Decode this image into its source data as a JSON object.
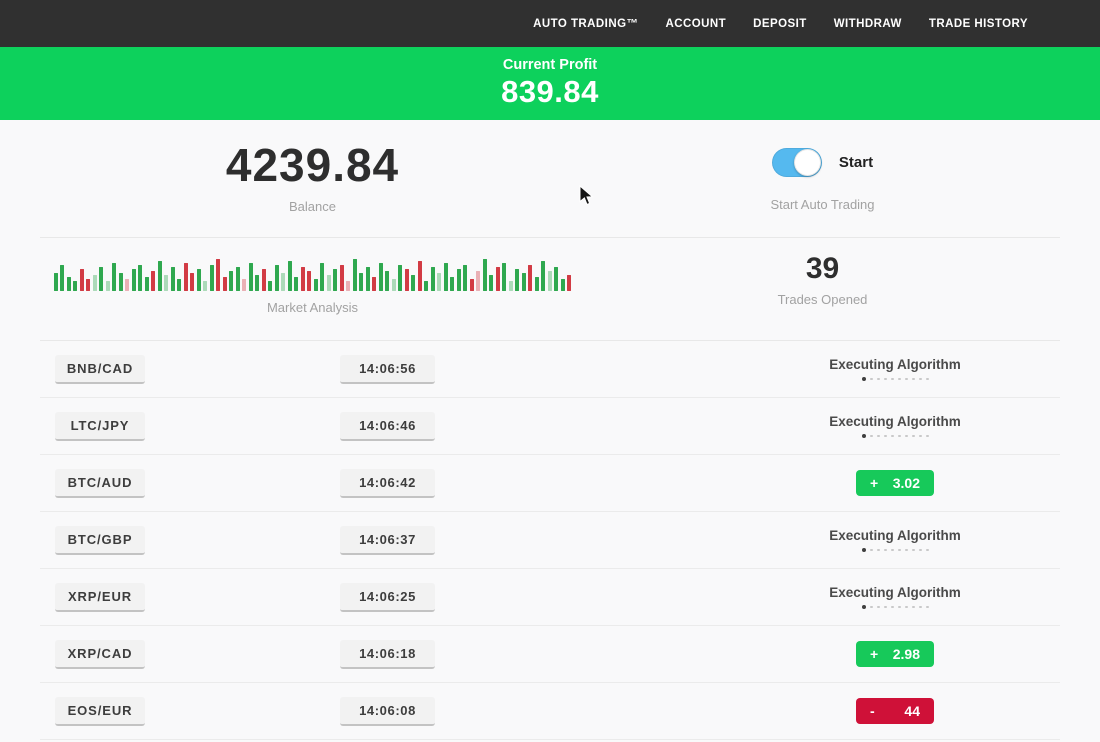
{
  "nav": {
    "items": [
      {
        "id": "auto-trading",
        "label": "AUTO TRADING™"
      },
      {
        "id": "account",
        "label": "ACCOUNT"
      },
      {
        "id": "deposit",
        "label": "DEPOSIT"
      },
      {
        "id": "withdraw",
        "label": "WITHDRAW"
      },
      {
        "id": "trade-history",
        "label": "TRADE HISTORY"
      }
    ]
  },
  "profit_banner": {
    "label": "Current Profit",
    "value": "839.84"
  },
  "balance": {
    "value": "4239.84",
    "label": "Balance"
  },
  "auto_trading_toggle": {
    "state": "on",
    "label": "Start",
    "caption": "Start Auto Trading"
  },
  "market_analysis": {
    "label": "Market Analysis",
    "bars": [
      [
        18,
        "g"
      ],
      [
        26,
        "g"
      ],
      [
        14,
        "g"
      ],
      [
        10,
        "g"
      ],
      [
        22,
        "r"
      ],
      [
        12,
        "r"
      ],
      [
        16,
        "lg"
      ],
      [
        24,
        "g"
      ],
      [
        10,
        "lg"
      ],
      [
        28,
        "g"
      ],
      [
        18,
        "g"
      ],
      [
        12,
        "lr"
      ],
      [
        22,
        "g"
      ],
      [
        26,
        "g"
      ],
      [
        14,
        "g"
      ],
      [
        20,
        "r"
      ],
      [
        30,
        "g"
      ],
      [
        16,
        "lg"
      ],
      [
        24,
        "g"
      ],
      [
        12,
        "g"
      ],
      [
        28,
        "r"
      ],
      [
        18,
        "r"
      ],
      [
        22,
        "g"
      ],
      [
        10,
        "lg"
      ],
      [
        26,
        "g"
      ],
      [
        32,
        "r"
      ],
      [
        14,
        "r"
      ],
      [
        20,
        "g"
      ],
      [
        24,
        "g"
      ],
      [
        12,
        "lr"
      ],
      [
        28,
        "g"
      ],
      [
        16,
        "g"
      ],
      [
        22,
        "r"
      ],
      [
        10,
        "g"
      ],
      [
        26,
        "g"
      ],
      [
        18,
        "lg"
      ],
      [
        30,
        "g"
      ],
      [
        14,
        "g"
      ],
      [
        24,
        "r"
      ],
      [
        20,
        "r"
      ],
      [
        12,
        "g"
      ],
      [
        28,
        "g"
      ],
      [
        16,
        "lg"
      ],
      [
        22,
        "g"
      ],
      [
        26,
        "r"
      ],
      [
        10,
        "lr"
      ],
      [
        32,
        "g"
      ],
      [
        18,
        "g"
      ],
      [
        24,
        "g"
      ],
      [
        14,
        "r"
      ],
      [
        28,
        "g"
      ],
      [
        20,
        "g"
      ],
      [
        12,
        "lg"
      ],
      [
        26,
        "g"
      ],
      [
        22,
        "r"
      ],
      [
        16,
        "g"
      ],
      [
        30,
        "r"
      ],
      [
        10,
        "g"
      ],
      [
        24,
        "g"
      ],
      [
        18,
        "lg"
      ],
      [
        28,
        "g"
      ],
      [
        14,
        "g"
      ],
      [
        22,
        "g"
      ],
      [
        26,
        "g"
      ],
      [
        12,
        "r"
      ],
      [
        20,
        "lr"
      ],
      [
        32,
        "g"
      ],
      [
        16,
        "g"
      ],
      [
        24,
        "r"
      ],
      [
        28,
        "g"
      ],
      [
        10,
        "lg"
      ],
      [
        22,
        "g"
      ],
      [
        18,
        "g"
      ],
      [
        26,
        "r"
      ],
      [
        14,
        "g"
      ],
      [
        30,
        "g"
      ],
      [
        20,
        "lg"
      ],
      [
        24,
        "g"
      ],
      [
        12,
        "g"
      ],
      [
        16,
        "r"
      ]
    ]
  },
  "trades_opened": {
    "value": "39",
    "label": "Trades Opened"
  },
  "trades": [
    {
      "pair": "BNB/CAD",
      "time": "14:06:56",
      "status": {
        "type": "executing",
        "label": "Executing Algorithm"
      }
    },
    {
      "pair": "LTC/JPY",
      "time": "14:06:46",
      "status": {
        "type": "executing",
        "label": "Executing Algorithm"
      }
    },
    {
      "pair": "BTC/AUD",
      "time": "14:06:42",
      "status": {
        "type": "result",
        "sign": "+",
        "amount": "3.02",
        "color": "green"
      }
    },
    {
      "pair": "BTC/GBP",
      "time": "14:06:37",
      "status": {
        "type": "executing",
        "label": "Executing Algorithm"
      }
    },
    {
      "pair": "XRP/EUR",
      "time": "14:06:25",
      "status": {
        "type": "executing",
        "label": "Executing Algorithm"
      }
    },
    {
      "pair": "XRP/CAD",
      "time": "14:06:18",
      "status": {
        "type": "result",
        "sign": "+",
        "amount": "2.98",
        "color": "green"
      }
    },
    {
      "pair": "EOS/EUR",
      "time": "14:06:08",
      "status": {
        "type": "result",
        "sign": "-",
        "amount": "44",
        "color": "red"
      }
    }
  ],
  "executing_dots_count": 10,
  "colors": {
    "nav_bg": "#303030",
    "banner_green": "#0dd15c",
    "profit_green": "#17c95a",
    "loss_red": "#cf1138",
    "toggle_blue": "#55b9ef",
    "bar_green": "#2fa84f",
    "bar_red": "#d23b44"
  }
}
